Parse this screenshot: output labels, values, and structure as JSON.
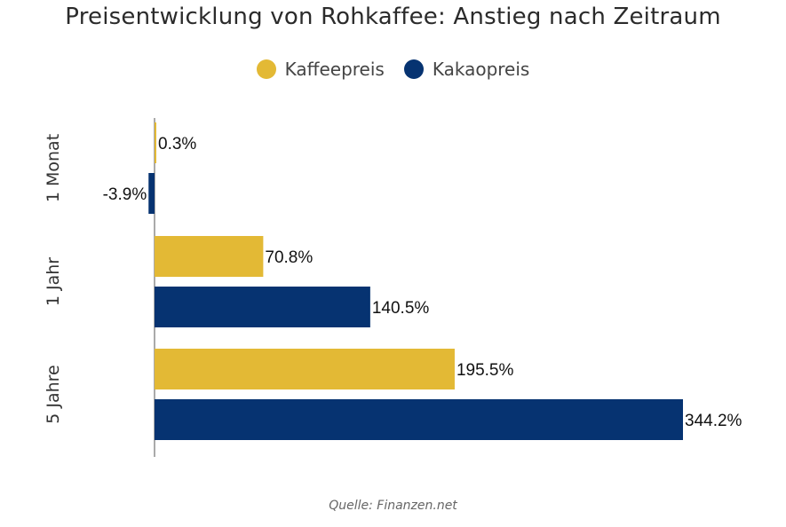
{
  "title": "Preisentwicklung von Rohkaffee: Anstieg nach Zeitraum",
  "source": "Quelle: Finanzen.net",
  "legend": [
    {
      "label": "Kaffeepreis",
      "color": "#E3B935"
    },
    {
      "label": "Kakaopreis",
      "color": "#063371"
    }
  ],
  "chart_data": {
    "type": "bar",
    "orientation": "horizontal",
    "categories": [
      "1 Monat",
      "1 Jahr",
      "5 Jahre"
    ],
    "series": [
      {
        "name": "Kaffeepreis",
        "color": "#E3B935",
        "values": [
          0.3,
          70.8,
          195.5
        ],
        "labels": [
          "0.3%",
          "70.8%",
          "195.5%"
        ]
      },
      {
        "name": "Kakaopreis",
        "color": "#063371",
        "values": [
          -3.9,
          140.5,
          344.2
        ],
        "labels": [
          "-3.9%",
          "140.5%",
          "344.2%"
        ]
      }
    ],
    "title": "Preisentwicklung von Rohkaffee: Anstieg nach Zeitraum",
    "xlabel": "",
    "ylabel": "",
    "legend_position": "top-center",
    "grid": false
  }
}
